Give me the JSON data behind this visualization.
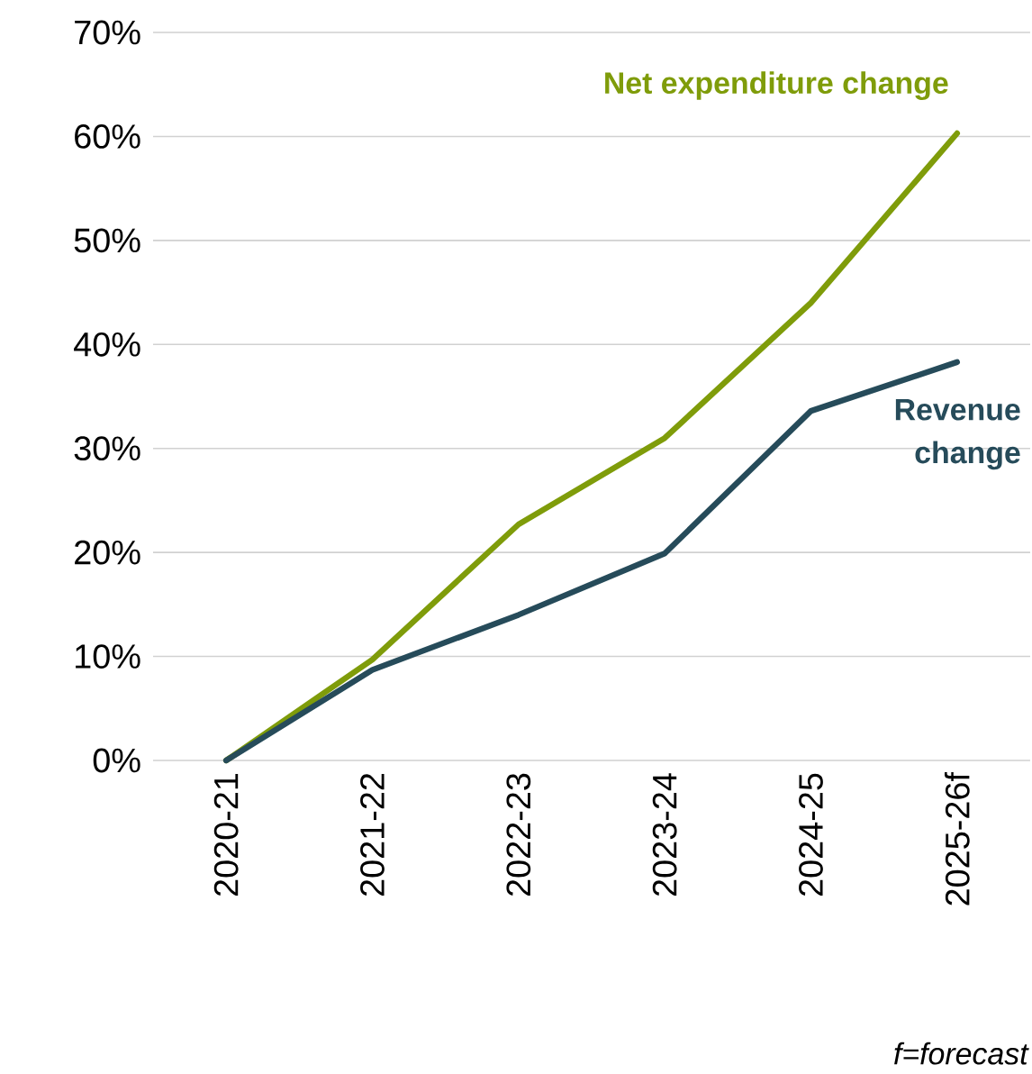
{
  "chart_data": {
    "type": "line",
    "categories": [
      "2020-21",
      "2021-22",
      "2022-23",
      "2023-24",
      "2024-25",
      "2025-26f"
    ],
    "series": [
      {
        "name": "Net expenditure change",
        "color": "#7f9c0a",
        "values": [
          0,
          9.7,
          22.7,
          31.0,
          44.0,
          60.3
        ]
      },
      {
        "name": "Revenue change",
        "color": "#264b5a",
        "values": [
          0,
          8.7,
          14.0,
          19.9,
          33.6,
          38.3
        ]
      }
    ],
    "ylim": [
      0,
      70
    ],
    "yticks": [
      {
        "value": 0,
        "label": "0%"
      },
      {
        "value": 10,
        "label": "10%"
      },
      {
        "value": 20,
        "label": "20%"
      },
      {
        "value": 30,
        "label": "30%"
      },
      {
        "value": 40,
        "label": "40%"
      },
      {
        "value": 50,
        "label": "50%"
      },
      {
        "value": 60,
        "label": "60%"
      },
      {
        "value": 70,
        "label": "70%"
      }
    ],
    "grid": "y",
    "legend": false,
    "marker": "none",
    "line_style": "solid",
    "annotations": [
      "f=forecast"
    ]
  }
}
